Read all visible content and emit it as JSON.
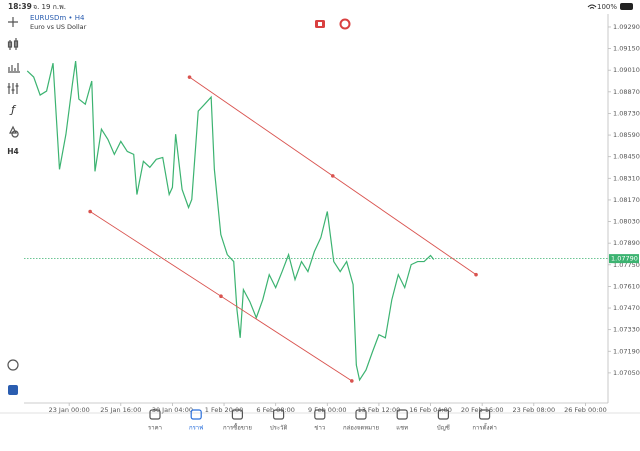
{
  "status_bar": {
    "time": "18:39",
    "date": "จ. 19 ก.พ.",
    "battery": "100%"
  },
  "toolbar": {
    "timeframe": "H4"
  },
  "chart_data": {
    "type": "line",
    "title": "EURUSDm • H4",
    "subtitle": "Euro vs US Dollar",
    "color": "#3cb371",
    "x": [
      3,
      5,
      7,
      9,
      11,
      13,
      15,
      17,
      18,
      19,
      21,
      23,
      24,
      26,
      28,
      30,
      32,
      34,
      36,
      37,
      39,
      41,
      43,
      45,
      47,
      48,
      49,
      51,
      53,
      54,
      56,
      58,
      60,
      61,
      63,
      65,
      67,
      68,
      69,
      70,
      72,
      74,
      76,
      78,
      80,
      82,
      84,
      86,
      88,
      90,
      92,
      94,
      96,
      98,
      100,
      102,
      104,
      105,
      106,
      108,
      110,
      112,
      114,
      116,
      118,
      120,
      122,
      124,
      126,
      128,
      129
    ],
    "values": [
      1.09005,
      1.08966,
      1.08849,
      1.08875,
      1.09056,
      1.08368,
      1.08596,
      1.0892,
      1.09069,
      1.08823,
      1.0879,
      1.0894,
      1.08355,
      1.08628,
      1.08562,
      1.08465,
      1.08549,
      1.08484,
      1.08465,
      1.08205,
      1.0842,
      1.08381,
      1.08433,
      1.08445,
      1.08205,
      1.08251,
      1.08596,
      1.08238,
      1.08121,
      1.08173,
      1.08745,
      1.0879,
      1.08836,
      1.08368,
      1.07946,
      1.07816,
      1.07771,
      1.07459,
      1.07277,
      1.07589,
      1.07511,
      1.07407,
      1.07524,
      1.07686,
      1.07602,
      1.07706,
      1.07816,
      1.07654,
      1.07771,
      1.07706,
      1.07836,
      1.07926,
      1.08095,
      1.07771,
      1.07706,
      1.07771,
      1.07622,
      1.07101,
      1.07004,
      1.07069,
      1.07186,
      1.07297,
      1.07277,
      1.07524,
      1.07686,
      1.07602,
      1.07751,
      1.07771,
      1.07771,
      1.0781,
      1.07784
    ],
    "xlim": [
      2,
      183
    ],
    "ylim": [
      1.06855,
      1.09374
    ],
    "xticks": [
      {
        "value": 16,
        "label": "23 Jan 00:00"
      },
      {
        "value": 32,
        "label": "25 Jan 16:00"
      },
      {
        "value": 48,
        "label": "30 Jan 04:00"
      },
      {
        "value": 64,
        "label": "1 Feb 20:00"
      },
      {
        "value": 80,
        "label": "6 Feb 08:00"
      },
      {
        "value": 96,
        "label": "9 Feb 00:00"
      },
      {
        "value": 112,
        "label": "13 Feb 12:00"
      },
      {
        "value": 128,
        "label": "16 Feb 04:00"
      },
      {
        "value": 144,
        "label": "20 Feb 16:00"
      },
      {
        "value": 160,
        "label": "23 Feb 08:00"
      },
      {
        "value": 176,
        "label": "26 Feb 00:00"
      }
    ],
    "yticks": [
      {
        "value": 1.0929,
        "label": "1.09290"
      },
      {
        "value": 1.0915,
        "label": "1.09150"
      },
      {
        "value": 1.0901,
        "label": "1.09010"
      },
      {
        "value": 1.0887,
        "label": "1.08870"
      },
      {
        "value": 1.0873,
        "label": "1.08730"
      },
      {
        "value": 1.0859,
        "label": "1.08590"
      },
      {
        "value": 1.0845,
        "label": "1.08450"
      },
      {
        "value": 1.0831,
        "label": "1.08310"
      },
      {
        "value": 1.0817,
        "label": "1.08170"
      },
      {
        "value": 1.0803,
        "label": "1.08030"
      },
      {
        "value": 1.0789,
        "label": "1.07890"
      },
      {
        "value": 1.0775,
        "label": "1.07750"
      },
      {
        "value": 1.0761,
        "label": "1.07610"
      },
      {
        "value": 1.0747,
        "label": "1.07470"
      },
      {
        "value": 1.0733,
        "label": "1.07330"
      },
      {
        "value": 1.0719,
        "label": "1.07190"
      },
      {
        "value": 1.0705,
        "label": "1.07050"
      }
    ],
    "current_price": {
      "value": 1.0779,
      "label": "1.07790"
    },
    "trendline_color": "#d9534f",
    "trendlines": [
      {
        "x": [
          53.3,
          142.1
        ],
        "values": [
          1.08965,
          1.07686
        ]
      },
      {
        "x": [
          22.5,
          103.6
        ],
        "values": [
          1.08095,
          1.06998
        ]
      }
    ]
  },
  "tabs": [
    {
      "label": "ราคา",
      "active": false
    },
    {
      "label": "กราฟ",
      "active": true
    },
    {
      "label": "การซื้อขาย",
      "active": false
    },
    {
      "label": "ประวัติ",
      "active": false
    },
    {
      "label": "ข่าว",
      "active": false
    },
    {
      "label": "กล่องจดหมาย",
      "active": false
    },
    {
      "label": "แชท",
      "active": false
    },
    {
      "label": "บัญชี",
      "active": false
    },
    {
      "label": "การตั้งค่า",
      "active": false
    }
  ]
}
